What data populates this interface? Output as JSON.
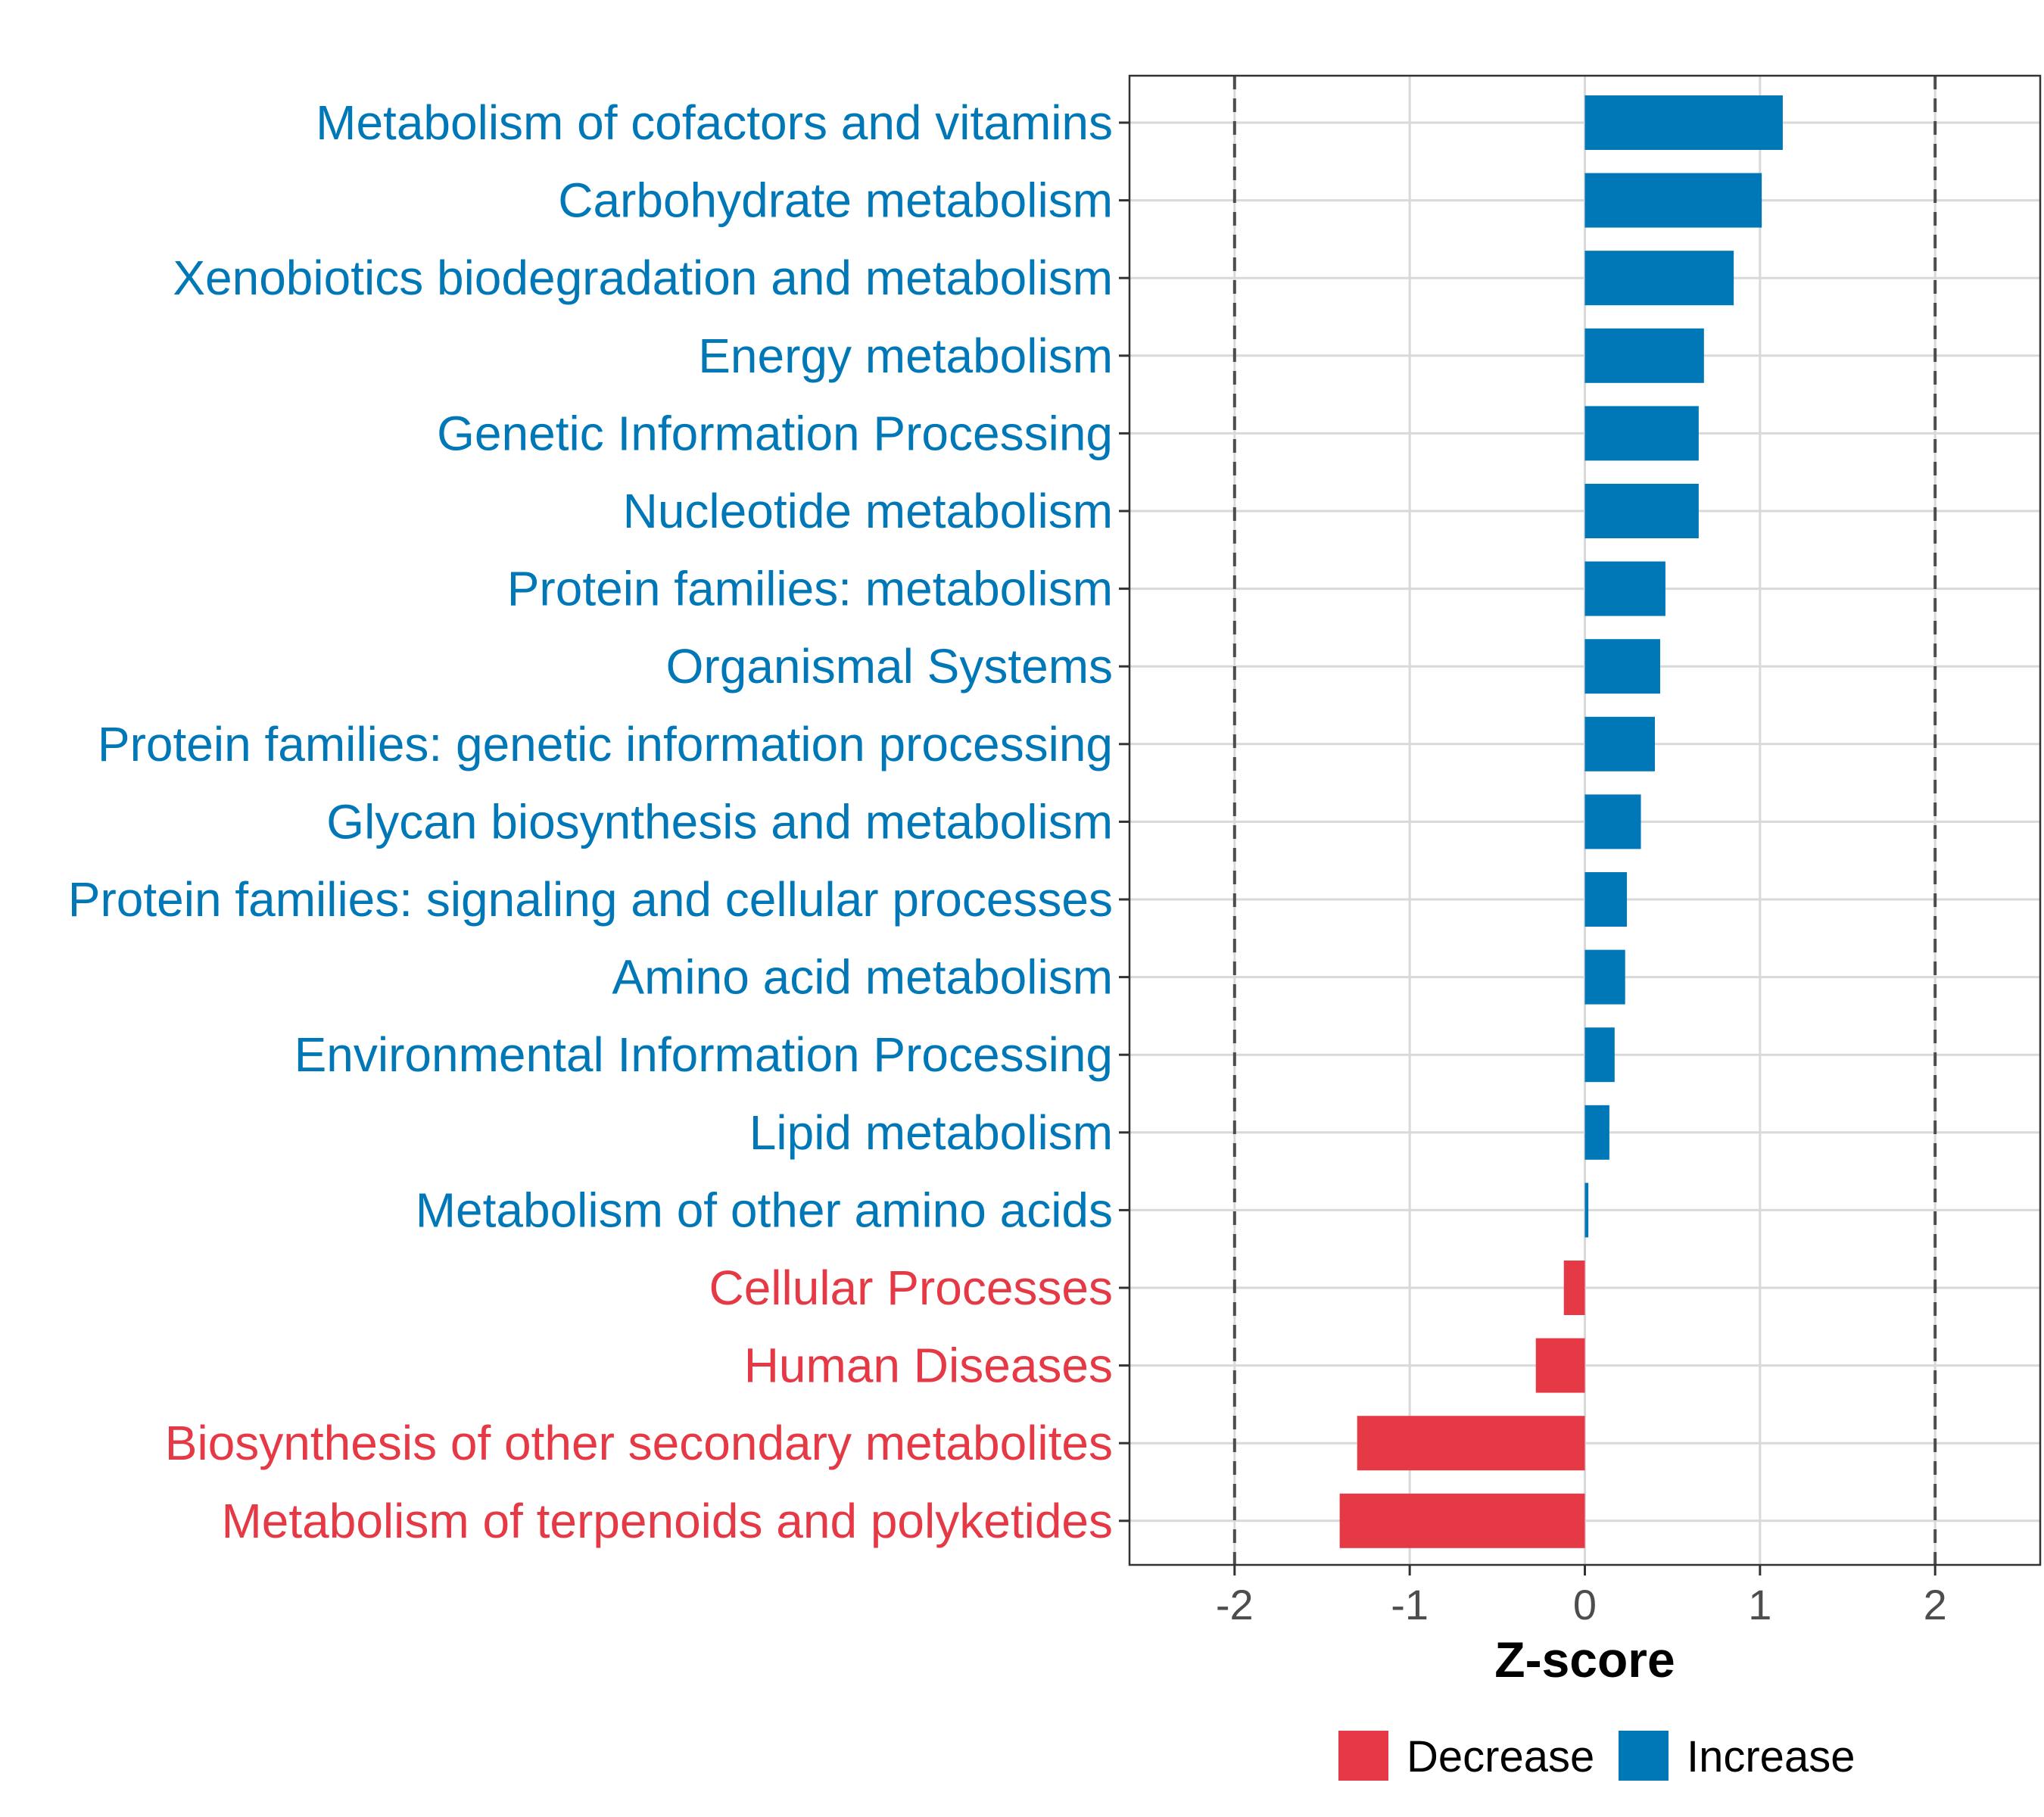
{
  "chart_data": {
    "type": "bar",
    "orientation": "horizontal",
    "xlabel": "Z-score",
    "xlim": [
      -2.6,
      2.6
    ],
    "xticks": [
      "-2",
      "-1",
      "0",
      "1",
      "2"
    ],
    "xtick_values": [
      -2,
      -1,
      0,
      1,
      2
    ],
    "reference_lines": [
      -2,
      2
    ],
    "categories": [
      "Metabolism of cofactors and vitamins",
      "Carbohydrate metabolism",
      "Xenobiotics biodegradation and metabolism",
      "Energy metabolism",
      "Genetic Information Processing",
      "Nucleotide metabolism",
      "Protein families: metabolism",
      "Organismal Systems",
      "Protein families: genetic information processing",
      "Glycan biosynthesis and metabolism",
      "Protein families: signaling and cellular processes",
      "Amino acid metabolism",
      "Environmental Information Processing",
      "Lipid metabolism",
      "Metabolism of other amino acids",
      "Cellular Processes",
      "Human Diseases",
      "Biosynthesis of other secondary metabolites",
      "Metabolism of terpenoids and polyketides"
    ],
    "values": [
      1.13,
      1.01,
      0.85,
      0.68,
      0.65,
      0.65,
      0.46,
      0.43,
      0.4,
      0.32,
      0.24,
      0.23,
      0.17,
      0.14,
      0.02,
      -0.12,
      -0.28,
      -1.3,
      -1.4
    ],
    "groups": [
      "Increase",
      "Increase",
      "Increase",
      "Increase",
      "Increase",
      "Increase",
      "Increase",
      "Increase",
      "Increase",
      "Increase",
      "Increase",
      "Increase",
      "Increase",
      "Increase",
      "Increase",
      "Decrease",
      "Decrease",
      "Decrease",
      "Decrease"
    ],
    "legend": {
      "position": "bottom",
      "entries": [
        {
          "label": "Decrease",
          "color": "#E63946"
        },
        {
          "label": "Increase",
          "color": "#0077B6"
        }
      ]
    },
    "colors": {
      "Increase": "#0077B6",
      "Decrease": "#E63946"
    }
  }
}
